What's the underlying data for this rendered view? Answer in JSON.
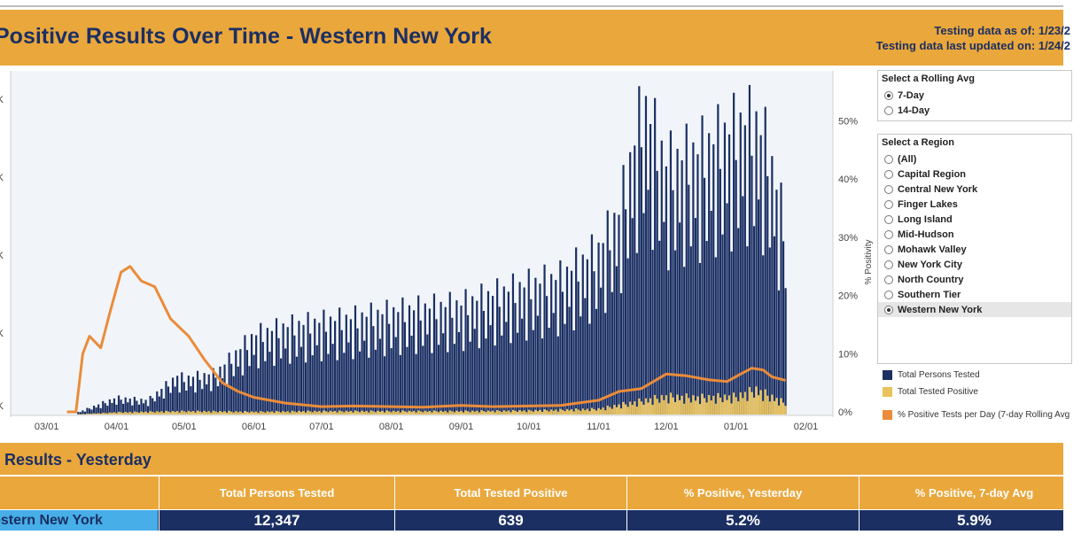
{
  "header": {
    "title": "Positive Results Over Time - Western New York",
    "testing_as_of": "Testing data as of: 1/23/2",
    "testing_updated": "Testing data last updated on: 1/24/2"
  },
  "rolling": {
    "title": "Select a Rolling Avg",
    "options": [
      "7-Day",
      "14-Day"
    ],
    "selected": "7-Day"
  },
  "region": {
    "title": "Select a Region",
    "options": [
      "(All)",
      "Capital Region",
      "Central New York",
      "Finger Lakes",
      "Long Island",
      "Mid-Hudson",
      "Mohawk Valley",
      "New York City",
      "North Country",
      "Southern Tier",
      "Western New York"
    ],
    "selected": "Western New York"
  },
  "legend": {
    "tested": "Total Persons Tested",
    "positive": "Total Tested Positive",
    "pct": "% Positive Tests per Day (7-day Rolling Avg"
  },
  "colors": {
    "tested": "#1b2f63",
    "positive": "#e9c25b",
    "pct": "#ea8c3a",
    "accent": "#eaa73b",
    "region_blue": "#47aee8"
  },
  "chart_data": {
    "type": "bar",
    "title": "Positive Results Over Time - Western New York",
    "xlabel": "",
    "ylabel": "",
    "y2label": "% Positivity",
    "x_ticks": [
      "03/01",
      "04/01",
      "05/01",
      "06/01",
      "07/01",
      "08/01",
      "09/01",
      "10/01",
      "11/01",
      "12/01",
      "01/01",
      "02/01"
    ],
    "y_ticks_left": [
      "K",
      "K",
      "K",
      "K",
      "K"
    ],
    "y_ticks_right": [
      "0%",
      "10%",
      "20%",
      "30%",
      "40%",
      "50%"
    ],
    "y2lim": [
      0,
      58
    ],
    "series": [
      {
        "name": "Total Persons Tested",
        "kind": "bar",
        "points": [
          [
            "2020-03-15",
            0.2
          ],
          [
            "2020-04-01",
            1.4
          ],
          [
            "2020-04-15",
            1.2
          ],
          [
            "2020-04-28",
            3.2
          ],
          [
            "2020-05-01",
            3.0
          ],
          [
            "2020-05-15",
            3.4
          ],
          [
            "2020-06-01",
            6.5
          ],
          [
            "2020-06-15",
            7.2
          ],
          [
            "2020-07-01",
            7.6
          ],
          [
            "2020-07-15",
            7.9
          ],
          [
            "2020-08-01",
            8.4
          ],
          [
            "2020-08-15",
            8.7
          ],
          [
            "2020-09-01",
            9.0
          ],
          [
            "2020-09-15",
            9.8
          ],
          [
            "2020-10-01",
            10.6
          ],
          [
            "2020-10-15",
            11.2
          ],
          [
            "2020-11-01",
            13.5
          ],
          [
            "2020-11-10",
            16.5
          ],
          [
            "2020-11-21",
            25.5
          ],
          [
            "2020-12-01",
            20.5
          ],
          [
            "2020-12-15",
            21.5
          ],
          [
            "2021-01-01",
            23.5
          ],
          [
            "2021-01-06",
            24.0
          ],
          [
            "2021-01-10",
            23.8
          ],
          [
            "2021-01-15",
            22.0
          ],
          [
            "2021-01-22",
            16.0
          ]
        ]
      },
      {
        "name": "Total Tested Positive",
        "kind": "bar",
        "points": [
          [
            "2020-03-15",
            0.02
          ],
          [
            "2020-04-01",
            0.2
          ],
          [
            "2020-05-01",
            0.3
          ],
          [
            "2020-06-01",
            0.25
          ],
          [
            "2020-07-01",
            0.3
          ],
          [
            "2020-08-01",
            0.3
          ],
          [
            "2020-09-01",
            0.3
          ],
          [
            "2020-10-01",
            0.35
          ],
          [
            "2020-11-01",
            0.5
          ],
          [
            "2020-11-20",
            1.2
          ],
          [
            "2020-12-01",
            1.6
          ],
          [
            "2020-12-15",
            1.5
          ],
          [
            "2021-01-01",
            1.6
          ],
          [
            "2021-01-10",
            2.2
          ],
          [
            "2021-01-22",
            1.1
          ]
        ]
      },
      {
        "name": "% Positive Tests per Day (7-day Rolling Avg)",
        "kind": "line",
        "axis": "right",
        "points": [
          [
            "2020-03-10",
            0.0
          ],
          [
            "2020-03-14",
            0.0
          ],
          [
            "2020-03-17",
            10.0
          ],
          [
            "2020-03-20",
            13.0
          ],
          [
            "2020-03-25",
            11.0
          ],
          [
            "2020-03-29",
            17.0
          ],
          [
            "2020-04-03",
            24.0
          ],
          [
            "2020-04-07",
            25.0
          ],
          [
            "2020-04-12",
            22.5
          ],
          [
            "2020-04-18",
            21.5
          ],
          [
            "2020-04-25",
            16.0
          ],
          [
            "2020-05-03",
            13.0
          ],
          [
            "2020-05-10",
            9.0
          ],
          [
            "2020-05-18",
            5.0
          ],
          [
            "2020-05-25",
            3.5
          ],
          [
            "2020-06-01",
            2.5
          ],
          [
            "2020-06-15",
            1.5
          ],
          [
            "2020-07-01",
            0.9
          ],
          [
            "2020-07-15",
            1.0
          ],
          [
            "2020-08-01",
            0.9
          ],
          [
            "2020-08-15",
            0.8
          ],
          [
            "2020-09-01",
            1.1
          ],
          [
            "2020-09-15",
            0.9
          ],
          [
            "2020-10-01",
            1.0
          ],
          [
            "2020-10-15",
            1.1
          ],
          [
            "2020-11-01",
            2.0
          ],
          [
            "2020-11-10",
            3.5
          ],
          [
            "2020-11-20",
            4.0
          ],
          [
            "2020-12-01",
            6.5
          ],
          [
            "2020-12-10",
            6.2
          ],
          [
            "2020-12-20",
            5.5
          ],
          [
            "2020-12-28",
            5.2
          ],
          [
            "2021-01-03",
            6.5
          ],
          [
            "2021-01-08",
            7.5
          ],
          [
            "2021-01-13",
            7.2
          ],
          [
            "2021-01-17",
            6.0
          ],
          [
            "2021-01-23",
            5.4
          ]
        ]
      }
    ]
  },
  "yesterday": {
    "title": "t Results - Yesterday",
    "columns": [
      "Total Persons Tested",
      "Total Tested Positive",
      "% Positive, Yesterday",
      "% Positive, 7-day Avg"
    ],
    "row": {
      "region": "estern New York",
      "tested": "12,347",
      "positive": "639",
      "pct_yesterday": "5.2%",
      "pct_7day": "5.9%"
    }
  }
}
